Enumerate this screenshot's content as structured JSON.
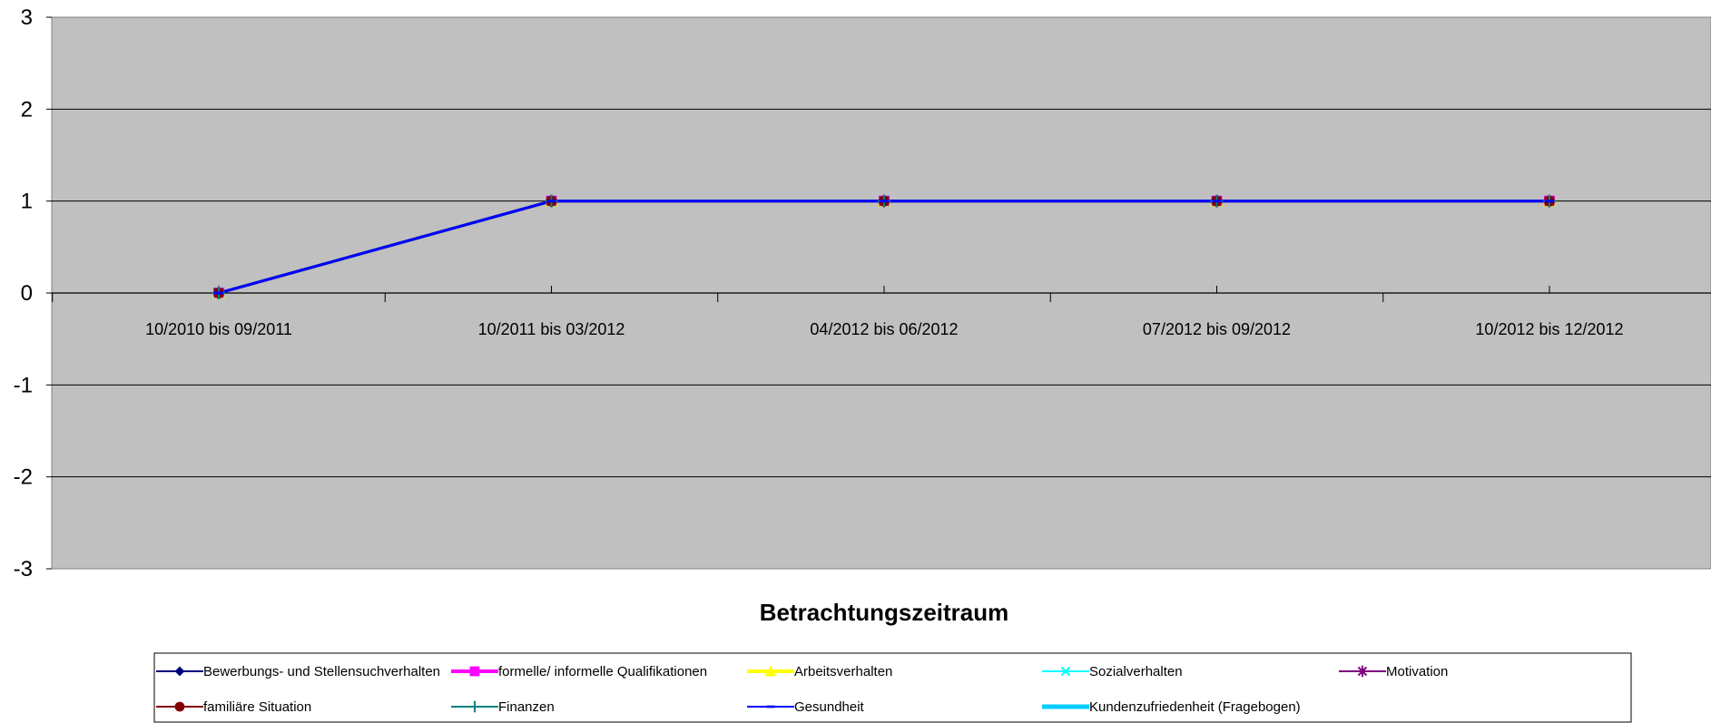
{
  "chart_data": {
    "type": "line",
    "title": "",
    "xlabel": "Betrachtungszeitraum",
    "ylabel": "",
    "ylim": [
      -3,
      3
    ],
    "yticks": [
      3,
      2,
      1,
      0,
      -1,
      -2,
      -3
    ],
    "grid": true,
    "plot_background": "#c0c0c0",
    "legend_position": "bottom",
    "categories": [
      "10/2010 bis 09/2011",
      "10/2011 bis 03/2012",
      "04/2012 bis 06/2012",
      "07/2012 bis 09/2012",
      "10/2012 bis 12/2012"
    ],
    "series": [
      {
        "name": "Bewerbungs- und Stellensuchverhalten",
        "color": "#000080",
        "marker": "diamond",
        "values": [
          0,
          1,
          1,
          1,
          1
        ]
      },
      {
        "name": "formelle/ informelle Qualifikationen",
        "color": "#ff00ff",
        "marker": "square",
        "values": [
          0,
          1,
          1,
          1,
          1
        ]
      },
      {
        "name": "Arbeitsverhalten",
        "color": "#ffff00",
        "marker": "triangle",
        "values": [
          0,
          1,
          1,
          1,
          1
        ]
      },
      {
        "name": "Sozialverhalten",
        "color": "#00ffff",
        "marker": "x",
        "values": [
          0,
          1,
          1,
          1,
          1
        ]
      },
      {
        "name": "Motivation",
        "color": "#800080",
        "marker": "star",
        "values": [
          0,
          1,
          1,
          1,
          1
        ]
      },
      {
        "name": "familiäre Situation",
        "color": "#800000",
        "marker": "circle",
        "values": [
          0,
          1,
          1,
          1,
          1
        ]
      },
      {
        "name": "Finanzen",
        "color": "#008080",
        "marker": "plus",
        "values": [
          0,
          1,
          1,
          1,
          1
        ]
      },
      {
        "name": "Gesundheit",
        "color": "#0000ff",
        "marker": "dash",
        "values": [
          0,
          1,
          1,
          1,
          1
        ]
      },
      {
        "name": "Kundenzufriedenheit (Fragebogen)",
        "color": "#00ccff",
        "marker": "none",
        "values": [
          null,
          null,
          null,
          null,
          null
        ]
      }
    ]
  }
}
